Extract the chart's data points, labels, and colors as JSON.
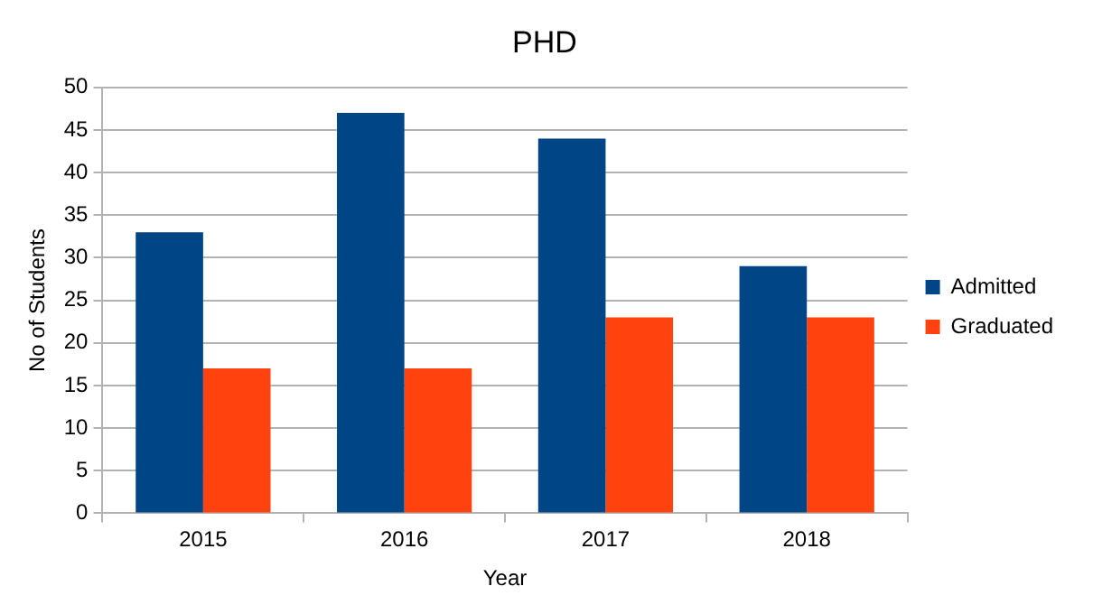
{
  "chart_data": {
    "type": "bar",
    "title": "PHD",
    "xlabel": "Year",
    "ylabel": "No of Students",
    "categories": [
      "2015",
      "2016",
      "2017",
      "2018"
    ],
    "series": [
      {
        "name": "Admitted",
        "color": "#004586",
        "values": [
          33,
          47,
          44,
          29
        ]
      },
      {
        "name": "Graduated",
        "color": "#ff420e",
        "values": [
          17,
          17,
          23,
          23
        ]
      }
    ],
    "ylim": [
      0,
      50
    ],
    "yticks": [
      0,
      5,
      10,
      15,
      20,
      25,
      30,
      35,
      40,
      45,
      50
    ],
    "grid": "y",
    "legend": "right"
  }
}
